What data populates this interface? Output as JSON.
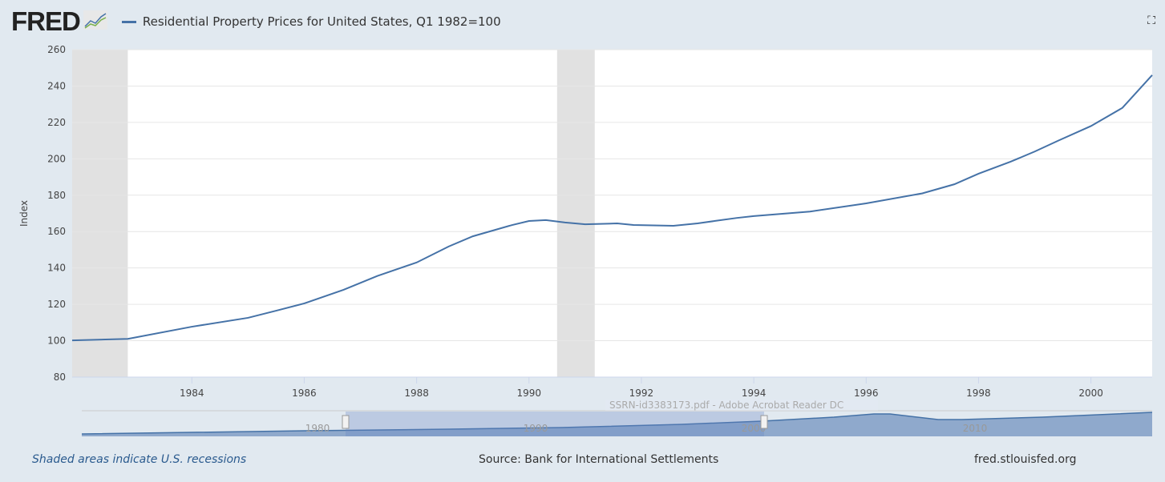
{
  "header": {
    "logo": "FRED",
    "series_title": "Residential Property Prices for United States, Q1 1982=100",
    "fullscreen_icon": "fullscreen-icon"
  },
  "footer": {
    "recession_note": "Shaded areas indicate U.S. recessions",
    "source": "Source: Bank for International Settlements",
    "site": "fred.stlouisfed.org"
  },
  "navigator": {
    "labels": [
      "1980",
      "1990",
      "2000",
      "2010"
    ],
    "tooltip": "SSRN-id3383173.pdf - Adobe Acrobat Reader DC"
  },
  "colors": {
    "line": "#4572a7",
    "recession": "#e1e1e1"
  },
  "chart_data": {
    "type": "line",
    "title": "Residential Property Prices for United States, Q1 1982=100",
    "xlabel": "",
    "ylabel": "Index",
    "xlim": [
      1981.87,
      2001.09
    ],
    "ylim": [
      80,
      260
    ],
    "yticks": [
      80,
      100,
      120,
      140,
      160,
      180,
      200,
      220,
      240,
      260
    ],
    "xticks": [
      1984,
      1986,
      1988,
      1990,
      1992,
      1994,
      1996,
      1998,
      2000
    ],
    "grid": true,
    "recessions": [
      [
        1981.87,
        1982.86
      ],
      [
        1990.5,
        1991.17
      ]
    ],
    "series": [
      {
        "name": "Residential Property Prices for United States, Q1 1982=100",
        "x": [
          1981.87,
          1982.86,
          1984,
          1985,
          1985.5,
          1986,
          1986.7,
          1987.3,
          1988,
          1988.57,
          1989,
          1989.7,
          1990,
          1990.3,
          1990.64,
          1991,
          1991.57,
          1991.86,
          1992.57,
          1993,
          1993.3,
          1993.7,
          1994,
          1995,
          1996,
          1997,
          1997.57,
          1998,
          1998.57,
          1999,
          1999.42,
          2000,
          2000.56,
          2001.09
        ],
        "y": [
          100.2,
          101,
          107.7,
          112.6,
          116.5,
          120.5,
          128,
          135.6,
          143,
          151.8,
          157.4,
          163.6,
          165.8,
          166.3,
          165,
          164,
          164.5,
          163.6,
          163.2,
          164.5,
          165.8,
          167.5,
          168.5,
          171,
          175.5,
          181,
          186,
          191.8,
          198.4,
          204,
          210,
          218,
          228,
          246
        ]
      }
    ]
  }
}
